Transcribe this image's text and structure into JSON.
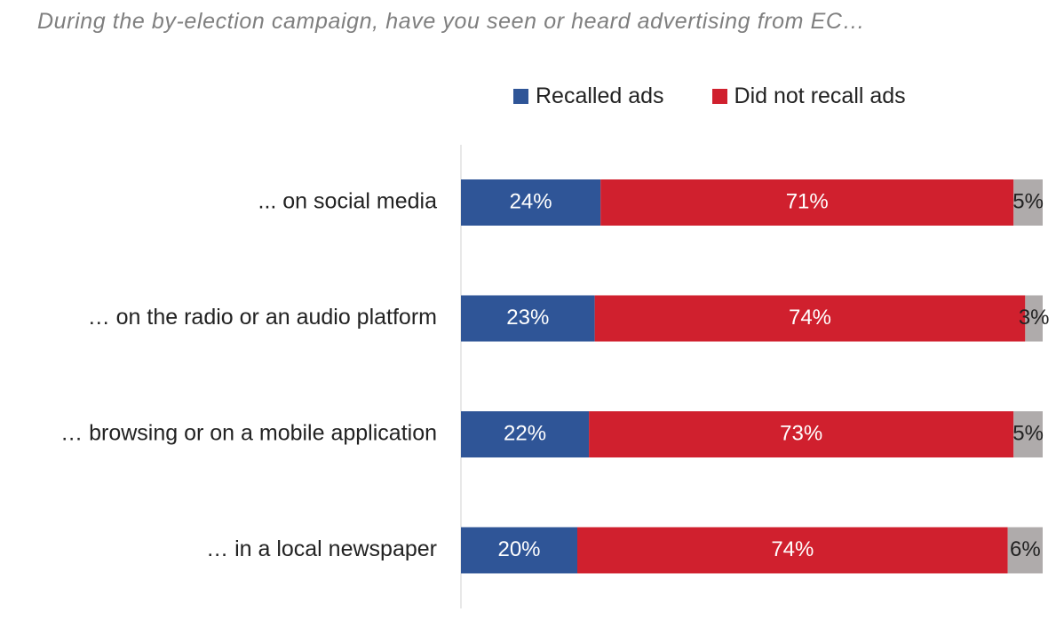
{
  "chart_data": {
    "type": "bar",
    "orientation": "horizontal",
    "stacked": true,
    "title": "During the by-election campaign, have you seen or heard advertising from EC…",
    "categories": [
      "... on social media",
      "… on the radio or an audio platform",
      "… browsing or on a mobile application",
      "… in a local newspaper"
    ],
    "series": [
      {
        "name": "Recalled ads",
        "color": "#2f5597",
        "label_color": "#ffffff",
        "values": [
          24,
          23,
          22,
          20
        ],
        "labels": [
          "24%",
          "23%",
          "22%",
          "20%"
        ]
      },
      {
        "name": "Did not recall ads",
        "color": "#d0202e",
        "label_color": "#ffffff",
        "values": [
          71,
          74,
          73,
          74
        ],
        "labels": [
          "71%",
          "74%",
          "73%",
          "74%"
        ]
      },
      {
        "color": "#afabab",
        "label_color": "#222222",
        "values": [
          5,
          3,
          5,
          6
        ],
        "labels": [
          "5%",
          "3%",
          "5%",
          "6%"
        ]
      }
    ],
    "xlim": [
      0,
      100
    ],
    "grid": false,
    "legend": "top-center"
  }
}
